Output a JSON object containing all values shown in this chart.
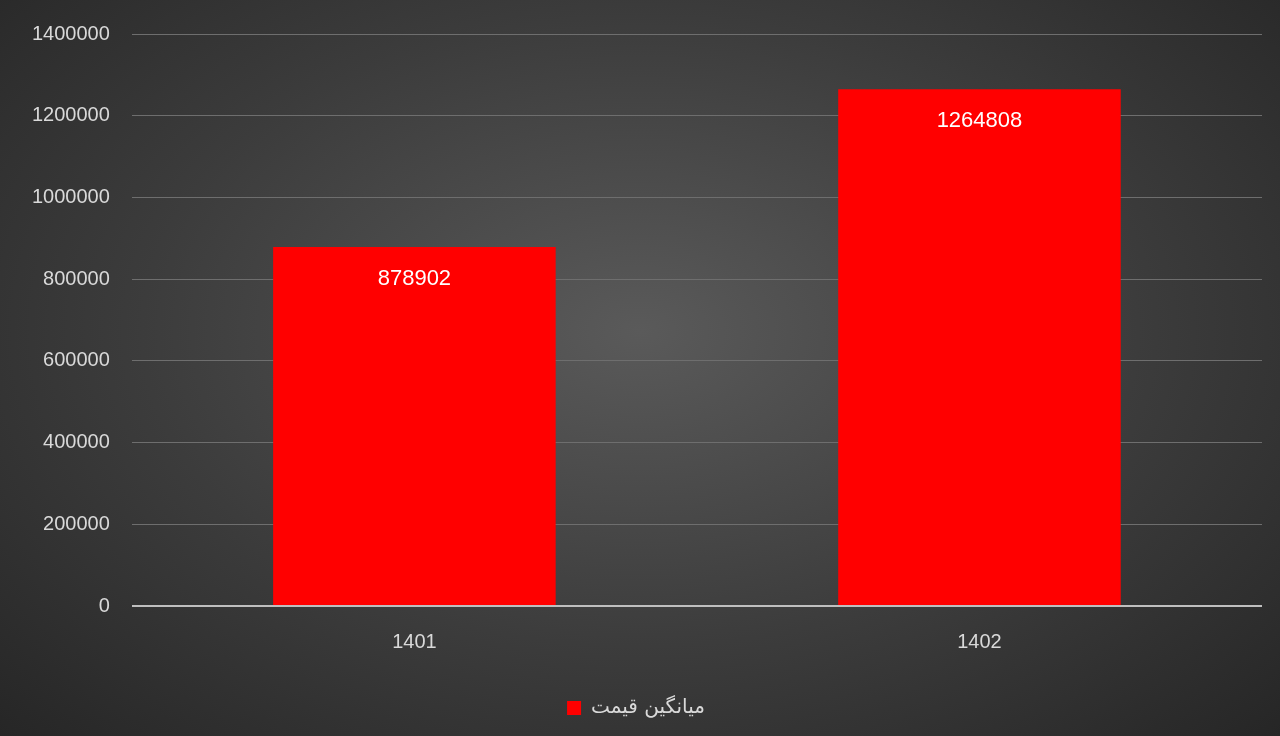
{
  "chart_data": {
    "type": "bar",
    "categories": [
      "1401",
      "1402"
    ],
    "series": [
      {
        "name": "میانگین قیمت",
        "color": "#ff0000",
        "values": [
          878902,
          1264808
        ]
      }
    ],
    "ylim": [
      0,
      1400000
    ],
    "yticks": [
      0,
      200000,
      400000,
      600000,
      800000,
      1000000,
      1200000,
      1400000
    ],
    "grid": "y",
    "legend": "bottom",
    "data_labels": true
  }
}
